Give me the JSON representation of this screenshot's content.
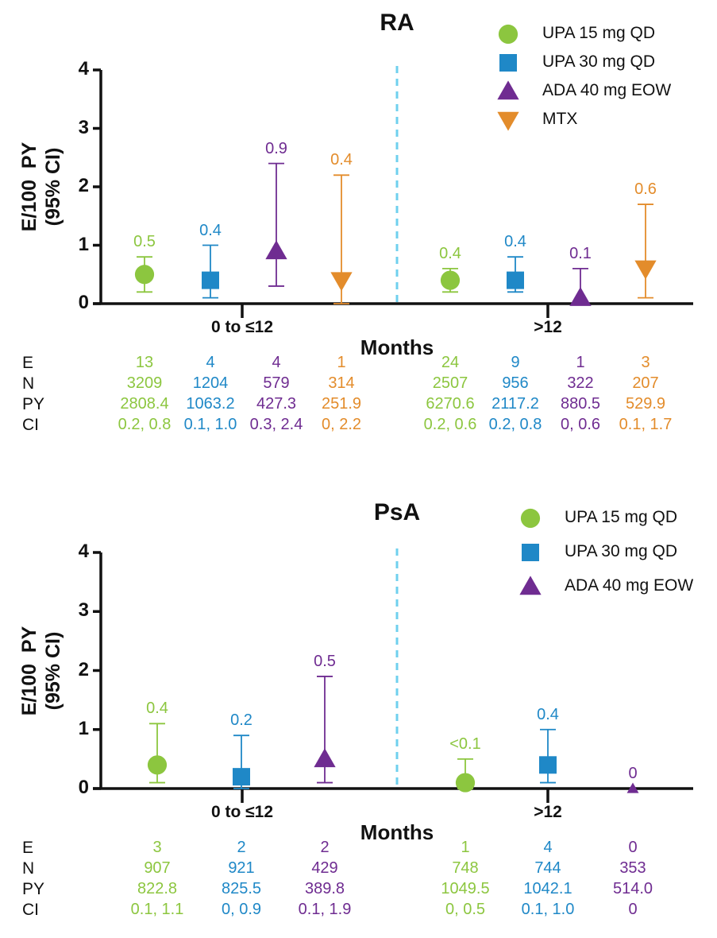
{
  "colors": {
    "UPA 15 mg QD": "#8cc63f",
    "UPA 30 mg QD": "#1f88c7",
    "ADA 40 mg EOW": "#6f2c91",
    "MTX": "#e38c2b",
    "divider": "#6fd0ee",
    "axis": "#111111"
  },
  "row_labels": [
    "E",
    "N",
    "PY",
    "CI"
  ],
  "chart_data": [
    {
      "type": "scatter",
      "title": "RA",
      "xlabel": "Months",
      "ylabel": "E/100  PY\n(95% CI)",
      "ylim": [
        0,
        4
      ],
      "yticks": [
        0,
        1,
        2,
        3,
        4
      ],
      "categories": [
        "0 to ≤12",
        ">12"
      ],
      "series": [
        {
          "name": "UPA 15 mg QD",
          "marker": "circle",
          "points": [
            {
              "category": "0 to ≤12",
              "y": 0.5,
              "ci": [
                0.2,
                0.8
              ],
              "label": "0.5",
              "E": "13",
              "N": "3209",
              "PY": "2808.4",
              "CI": "0.2, 0.8"
            },
            {
              "category": ">12",
              "y": 0.4,
              "ci": [
                0.2,
                0.6
              ],
              "label": "0.4",
              "E": "24",
              "N": "2507",
              "PY": "6270.6",
              "CI": "0.2, 0.6"
            }
          ]
        },
        {
          "name": "UPA 30 mg QD",
          "marker": "square",
          "points": [
            {
              "category": "0 to ≤12",
              "y": 0.4,
              "ci": [
                0.1,
                1.0
              ],
              "label": "0.4",
              "E": "4",
              "N": "1204",
              "PY": "1063.2",
              "CI": "0.1, 1.0"
            },
            {
              "category": ">12",
              "y": 0.4,
              "ci": [
                0.2,
                0.8
              ],
              "label": "0.4",
              "E": "9",
              "N": "956",
              "PY": "2117.2",
              "CI": "0.2, 0.8"
            }
          ]
        },
        {
          "name": "ADA 40 mg EOW",
          "marker": "triangle-up",
          "points": [
            {
              "category": "0 to ≤12",
              "y": 0.9,
              "ci": [
                0.3,
                2.4
              ],
              "label": "0.9",
              "E": "4",
              "N": "579",
              "PY": "427.3",
              "CI": "0.3, 2.4"
            },
            {
              "category": ">12",
              "y": 0.1,
              "ci": [
                0,
                0.6
              ],
              "label": "0.1",
              "E": "1",
              "N": "322",
              "PY": "880.5",
              "CI": "0, 0.6"
            }
          ]
        },
        {
          "name": "MTX",
          "marker": "triangle-down",
          "points": [
            {
              "category": "0 to ≤12",
              "y": 0.4,
              "ci": [
                0,
                2.2
              ],
              "label": "0.4",
              "E": "1",
              "N": "314",
              "PY": "251.9",
              "CI": "0, 2.2"
            },
            {
              "category": ">12",
              "y": 0.6,
              "ci": [
                0.1,
                1.7
              ],
              "label": "0.6",
              "E": "3",
              "N": "207",
              "PY": "529.9",
              "CI": "0.1, 1.7"
            }
          ]
        }
      ]
    },
    {
      "type": "scatter",
      "title": "PsA",
      "xlabel": "Months",
      "ylabel": "E/100  PY\n(95% CI)",
      "ylim": [
        0,
        4
      ],
      "yticks": [
        0,
        1,
        2,
        3,
        4
      ],
      "categories": [
        "0 to ≤12",
        ">12"
      ],
      "series": [
        {
          "name": "UPA 15 mg QD",
          "marker": "circle",
          "points": [
            {
              "category": "0 to ≤12",
              "y": 0.4,
              "ci": [
                0.1,
                1.1
              ],
              "label": "0.4",
              "E": "3",
              "N": "907",
              "PY": "822.8",
              "CI": "0.1, 1.1"
            },
            {
              "category": ">12",
              "y": 0.1,
              "ci": [
                0,
                0.5
              ],
              "label": "<0.1",
              "E": "1",
              "N": "748",
              "PY": "1049.5",
              "CI": "0, 0.5"
            }
          ]
        },
        {
          "name": "UPA 30 mg QD",
          "marker": "square",
          "points": [
            {
              "category": "0 to ≤12",
              "y": 0.2,
              "ci": [
                0,
                0.9
              ],
              "label": "0.2",
              "E": "2",
              "N": "921",
              "PY": "825.5",
              "CI": "0, 0.9"
            },
            {
              "category": ">12",
              "y": 0.4,
              "ci": [
                0.1,
                1.0
              ],
              "label": "0.4",
              "E": "4",
              "N": "744",
              "PY": "1042.1",
              "CI": "0.1, 1.0"
            }
          ]
        },
        {
          "name": "ADA 40 mg EOW",
          "marker": "triangle-up",
          "points": [
            {
              "category": "0 to ≤12",
              "y": 0.5,
              "ci": [
                0.1,
                1.9
              ],
              "label": "0.5",
              "E": "2",
              "N": "429",
              "PY": "389.8",
              "CI": "0.1, 1.9"
            },
            {
              "category": ">12",
              "y": 0,
              "ci": [
                0,
                0
              ],
              "label": "0",
              "E": "0",
              "N": "353",
              "PY": "514.0",
              "CI": "0"
            }
          ]
        }
      ]
    }
  ]
}
